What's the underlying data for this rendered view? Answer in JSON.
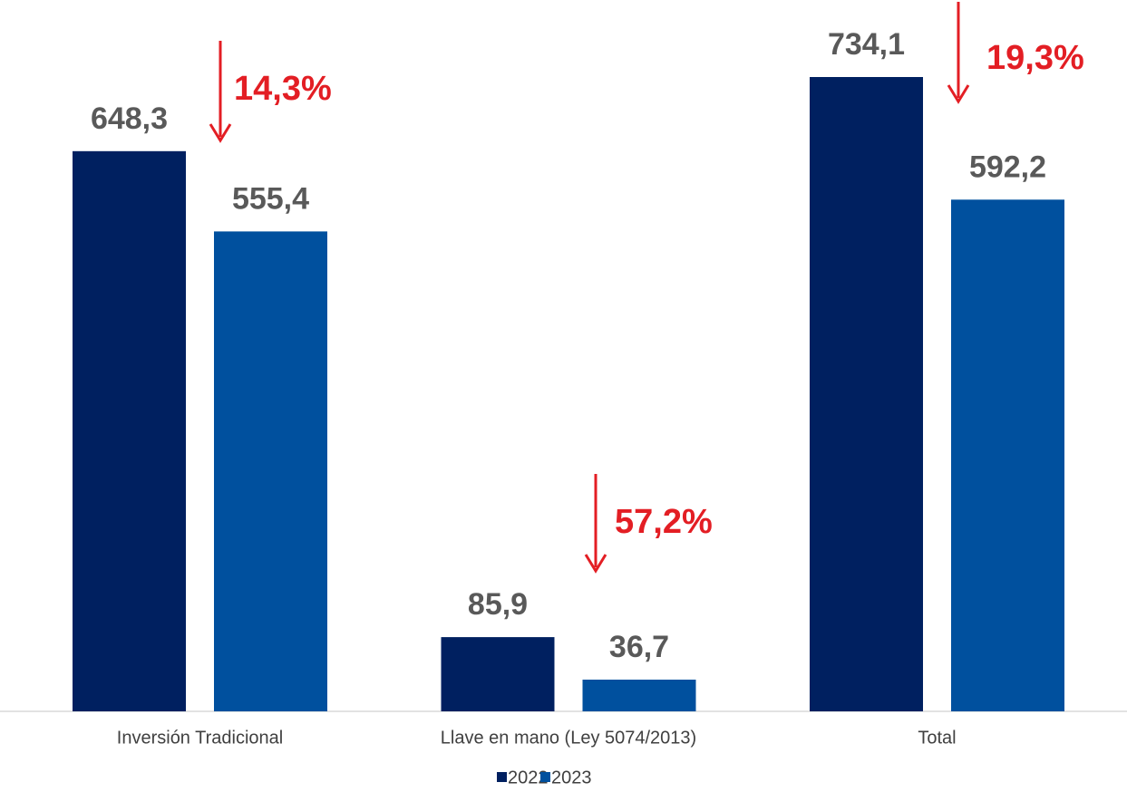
{
  "chart_data": {
    "type": "bar",
    "categories": [
      "Inversión Tradicional",
      "Llave en mano (Ley 5074/2013)",
      "Total"
    ],
    "series": [
      {
        "name": "2022",
        "color": "#002060",
        "values": [
          648.3,
          85.9,
          734.1
        ],
        "value_labels": [
          "648,3",
          "85,9",
          "734,1"
        ]
      },
      {
        "name": "2023",
        "color": "#00509e",
        "values": [
          555.4,
          36.7,
          592.2
        ],
        "value_labels": [
          "555,4",
          "36,7",
          "592,2"
        ]
      }
    ],
    "annotations": [
      {
        "text": "14,3%",
        "color": "#e31e24"
      },
      {
        "text": "57,2%",
        "color": "#e31e24"
      },
      {
        "text": "19,3%",
        "color": "#e31e24"
      }
    ],
    "legend": "bottom"
  }
}
